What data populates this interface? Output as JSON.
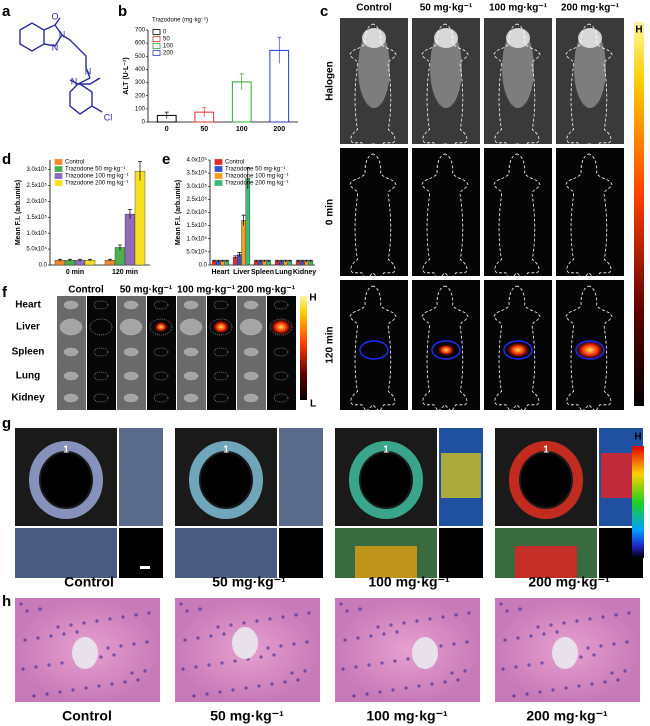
{
  "figure": {
    "panel_labels": [
      "a",
      "b",
      "c",
      "d",
      "e",
      "f",
      "g",
      "h"
    ],
    "doses": [
      "Control",
      "50 mg·kg⁻¹",
      "100 mg·kg⁻¹",
      "200 mg·kg⁻¹"
    ],
    "structure_atoms": [
      "N",
      "N",
      "O",
      "N",
      "N",
      "Cl"
    ],
    "c_rows": [
      "Halogen",
      "0 min",
      "120 min"
    ],
    "organs": [
      "Heart",
      "Liver",
      "Spleen",
      "Lung",
      "Kidney"
    ],
    "scale_high": "H",
    "scale_low": "L",
    "g_marker": "1"
  },
  "chart_data": [
    {
      "type": "bar",
      "bar_style": "hollow",
      "y_label": "ALT (U·L⁻¹)",
      "legend_title": "Trazodone (mg·kg⁻¹)",
      "categories": [
        "0",
        "50",
        "100",
        "200"
      ],
      "values": [
        50,
        75,
        305,
        545
      ],
      "errors": [
        25,
        35,
        60,
        100
      ],
      "colors": [
        "#000000",
        "#e0302a",
        "#2aa82a",
        "#2a3ad0"
      ],
      "ylim": [
        0,
        700
      ],
      "yticks": [
        0,
        100,
        200,
        300,
        400,
        500,
        600,
        700
      ]
    },
    {
      "type": "bar",
      "bar_style": "filled",
      "y_label": "Mean F.I. (arb.units)",
      "categories": [
        "0 min",
        "120 min"
      ],
      "series": [
        {
          "name": "Control",
          "color": "#f08a30",
          "values": [
            15000,
            15000
          ],
          "errors": [
            3000,
            3000
          ]
        },
        {
          "name": "Trazodone 50 mg·kg⁻¹",
          "color": "#4caf50",
          "values": [
            15000,
            55000
          ],
          "errors": [
            3000,
            8000
          ]
        },
        {
          "name": "Trazodone 100 mg·kg⁻¹",
          "color": "#8e6ab8",
          "values": [
            15000,
            160000
          ],
          "errors": [
            3000,
            15000
          ]
        },
        {
          "name": "Trazodone 200 mg·kg⁻¹",
          "color": "#f5e11e",
          "values": [
            15000,
            295000
          ],
          "errors": [
            3000,
            30000
          ]
        }
      ],
      "ylim": [
        0,
        330000
      ],
      "yticks": [
        {
          "value": 0,
          "label": "0.0"
        },
        {
          "value": 50000,
          "label": "5.0x10⁴"
        },
        {
          "value": 100000,
          "label": "1.0x10⁵"
        },
        {
          "value": 150000,
          "label": "1.5x10⁵"
        },
        {
          "value": 200000,
          "label": "2.0x10⁵"
        },
        {
          "value": 250000,
          "label": "2.5x10⁵"
        },
        {
          "value": 300000,
          "label": "3.0x10⁵"
        }
      ]
    },
    {
      "type": "bar",
      "bar_style": "filled",
      "y_label": "Mean F.I. (arb.units)",
      "categories": [
        "Heart",
        "Liver",
        "Spleen",
        "Lung",
        "Kidney"
      ],
      "series": [
        {
          "name": "Control",
          "color": "#e02b2b",
          "values": [
            15000,
            30000,
            15000,
            15000,
            15000
          ],
          "errors": [
            3000,
            5000,
            3000,
            3000,
            3000
          ]
        },
        {
          "name": "Trazodone 50 mg·kg⁻¹",
          "color": "#3b52c4",
          "values": [
            15000,
            40000,
            15000,
            15000,
            15000
          ],
          "errors": [
            3000,
            8000,
            3000,
            3000,
            3000
          ]
        },
        {
          "name": "Trazodone 100 mg·kg⁻¹",
          "color": "#f0a020",
          "values": [
            15000,
            170000,
            15000,
            15000,
            15000
          ],
          "errors": [
            3000,
            20000,
            3000,
            3000,
            3000
          ]
        },
        {
          "name": "Trazodone 200 mg·kg⁻¹",
          "color": "#3cb878",
          "values": [
            15000,
            330000,
            15000,
            15000,
            15000
          ],
          "errors": [
            3000,
            40000,
            3000,
            3000,
            3000
          ]
        }
      ],
      "ylim": [
        0,
        400000
      ],
      "yticks": [
        {
          "value": 0,
          "label": "0.0"
        },
        {
          "value": 50000,
          "label": "5.0x10⁴"
        },
        {
          "value": 100000,
          "label": "1.0x10⁵"
        },
        {
          "value": 150000,
          "label": "1.5x10⁵"
        },
        {
          "value": 200000,
          "label": "2.0x10⁵"
        },
        {
          "value": 250000,
          "label": "2.5x10⁵"
        },
        {
          "value": 300000,
          "label": "3.0x10⁵"
        },
        {
          "value": 350000,
          "label": "3.5x10⁵"
        },
        {
          "value": 400000,
          "label": "4.0x10⁵"
        }
      ]
    }
  ]
}
